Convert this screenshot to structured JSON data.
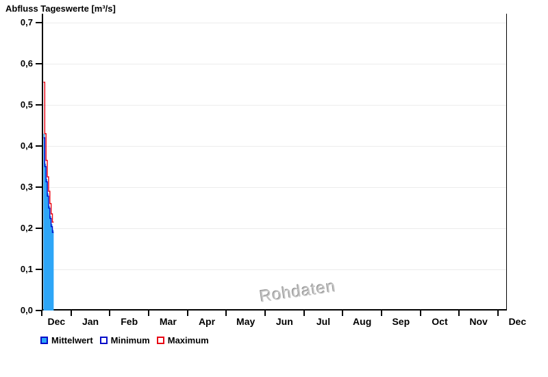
{
  "title": "Abfluss Tageswerte [m³/s]",
  "watermark": "Rohdaten",
  "legend": {
    "items": [
      {
        "label": "Mittelwert",
        "swatch": "mean"
      },
      {
        "label": "Minimum",
        "swatch": "min"
      },
      {
        "label": "Maximum",
        "swatch": "max"
      }
    ]
  },
  "colors": {
    "mean_fill": "#2ea6f7",
    "min_line": "#0008c8",
    "max_line": "#e80011",
    "grid": "#ececec",
    "axis": "#000000",
    "watermark": "#c3c3c3"
  },
  "chart_data": {
    "type": "area",
    "title": "Abfluss Tageswerte [m³/s]",
    "xlabel": "",
    "ylabel": "m³/s",
    "ylim": [
      0.0,
      0.7
    ],
    "grid": "horizontal-only",
    "legend_position": "bottom-left",
    "y_ticks": [
      {
        "v": 0.0,
        "label": "0,0"
      },
      {
        "v": 0.1,
        "label": "0,1"
      },
      {
        "v": 0.2,
        "label": "0,2"
      },
      {
        "v": 0.3,
        "label": "0,3"
      },
      {
        "v": 0.4,
        "label": "0,4"
      },
      {
        "v": 0.5,
        "label": "0,5"
      },
      {
        "v": 0.6,
        "label": "0,6"
      },
      {
        "v": 0.7,
        "label": "0,7"
      }
    ],
    "x_tick_labels": [
      "Dec",
      "Jan",
      "Feb",
      "Mar",
      "Apr",
      "May",
      "Jun",
      "Jul",
      "Aug",
      "Sep",
      "Oct",
      "Nov",
      "Dec"
    ],
    "x": [
      1,
      2,
      3,
      4,
      5,
      6,
      7,
      8
    ],
    "x_note": "daily values, first 8 days of December; rest of year empty",
    "series": [
      {
        "name": "Mittelwert",
        "role": "mean",
        "values": [
          0.43,
          0.357,
          0.32,
          0.285,
          0.255,
          0.23,
          0.21,
          0.196
        ]
      },
      {
        "name": "Minimum",
        "role": "min",
        "values": [
          0.42,
          0.35,
          0.313,
          0.278,
          0.249,
          0.224,
          0.204,
          0.19
        ]
      },
      {
        "name": "Maximum",
        "role": "max",
        "values": [
          0.555,
          0.43,
          0.365,
          0.325,
          0.29,
          0.26,
          0.235,
          0.215
        ]
      }
    ]
  }
}
